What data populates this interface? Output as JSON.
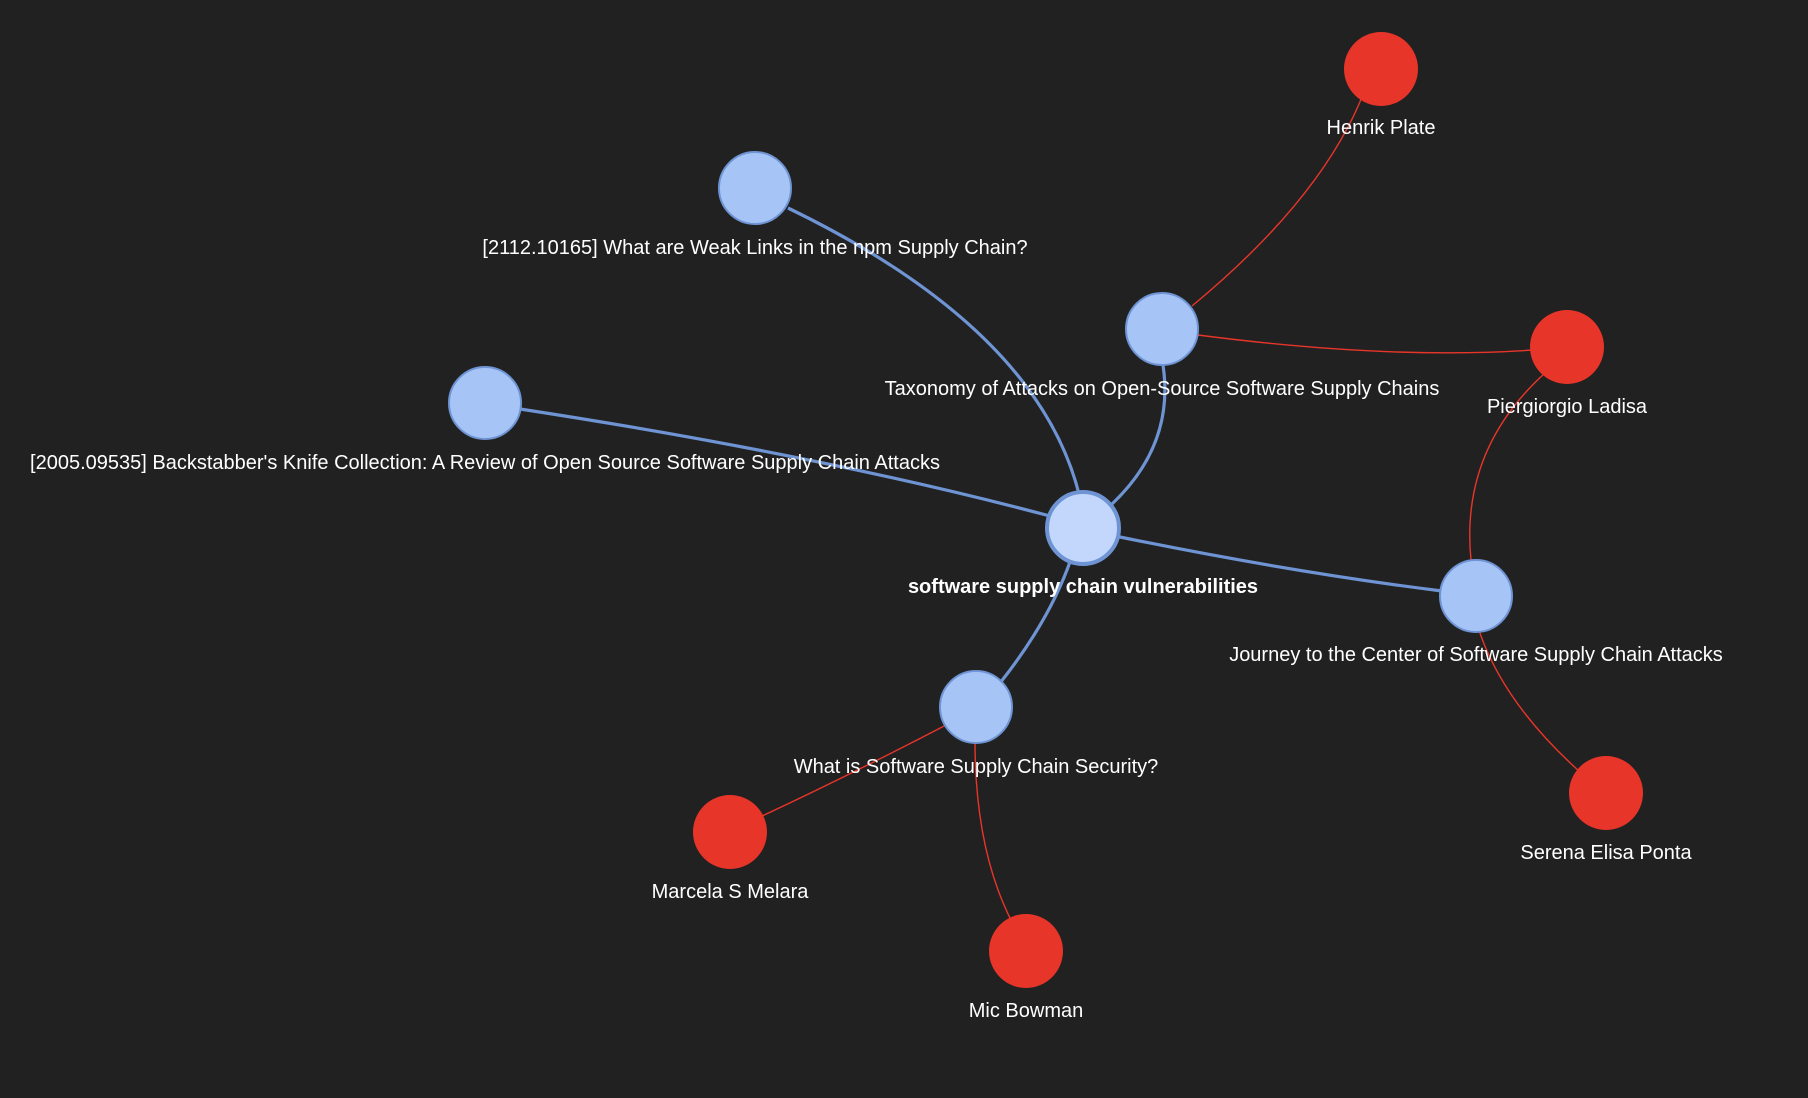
{
  "graph": {
    "root": {
      "label": "software supply chain vulnerabilities",
      "color": "#c2d7fb"
    },
    "papers": [
      {
        "id": "p1",
        "label": "[2112.10165] What are Weak Links in the npm Supply Chain?"
      },
      {
        "id": "p2",
        "label": "Taxonomy of Attacks on Open-Source Software Supply Chains"
      },
      {
        "id": "p3",
        "label": "[2005.09535] Backstabber's Knife Collection: A Review of Open Source Software Supply Chain Attacks"
      },
      {
        "id": "p4",
        "label": "Journey to the Center of Software Supply Chain Attacks"
      },
      {
        "id": "p5",
        "label": "What is Software Supply Chain Security?"
      }
    ],
    "authors": [
      {
        "id": "a1",
        "label": "Henrik Plate"
      },
      {
        "id": "a2",
        "label": "Piergiorgio Ladisa"
      },
      {
        "id": "a3",
        "label": "Serena Elisa Ponta"
      },
      {
        "id": "a4",
        "label": "Marcela S Melara"
      },
      {
        "id": "a5",
        "label": "Mic Bowman"
      }
    ],
    "edges": [
      {
        "from": "root",
        "to": "p1",
        "kind": "paper"
      },
      {
        "from": "root",
        "to": "p2",
        "kind": "paper"
      },
      {
        "from": "root",
        "to": "p3",
        "kind": "paper"
      },
      {
        "from": "root",
        "to": "p4",
        "kind": "paper"
      },
      {
        "from": "root",
        "to": "p5",
        "kind": "paper"
      },
      {
        "from": "p2",
        "to": "a1",
        "kind": "author"
      },
      {
        "from": "p2",
        "to": "a2",
        "kind": "author"
      },
      {
        "from": "p4",
        "to": "a2",
        "kind": "author"
      },
      {
        "from": "p4",
        "to": "a3",
        "kind": "author"
      },
      {
        "from": "p5",
        "to": "a4",
        "kind": "author"
      },
      {
        "from": "p5",
        "to": "a5",
        "kind": "author"
      }
    ],
    "colors": {
      "background": "#212121",
      "paper_node": "#a6c4f6",
      "paper_edge": "#6f94d4",
      "author_node": "#e8352a",
      "author_edge": "#e8352a",
      "label": "#ffffff"
    }
  }
}
